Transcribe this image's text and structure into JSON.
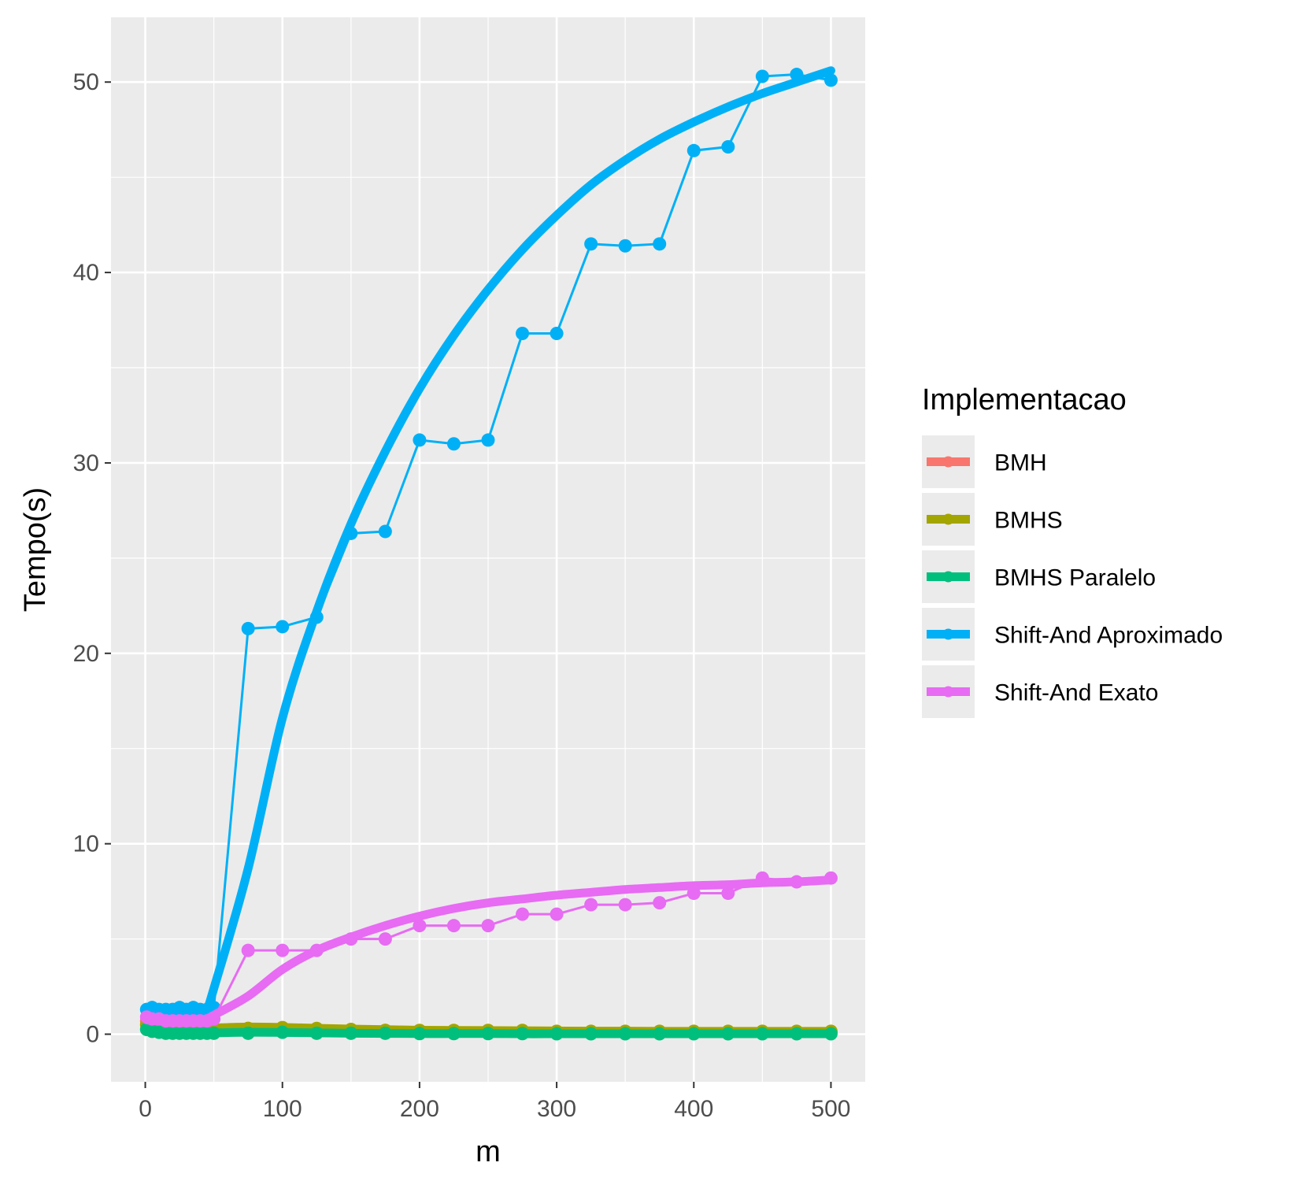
{
  "chart_data": {
    "type": "line",
    "title": "",
    "xlabel": "m",
    "ylabel": "Tempo(s)",
    "xlim": [
      -25,
      525
    ],
    "ylim": [
      -2.5,
      53.4
    ],
    "xticks": [
      0,
      100,
      200,
      300,
      400,
      500
    ],
    "yticks": [
      0,
      10,
      20,
      30,
      40,
      50
    ],
    "grid": true,
    "legend": {
      "title": "Implementacao",
      "position": "right"
    },
    "x": [
      1,
      5,
      10,
      15,
      20,
      25,
      30,
      35,
      40,
      45,
      50,
      75,
      100,
      125,
      150,
      175,
      200,
      225,
      250,
      275,
      300,
      325,
      350,
      375,
      400,
      425,
      450,
      475,
      500
    ],
    "series": [
      {
        "name": "BMH",
        "color": "#F8766D",
        "values": [
          0.7,
          0.5,
          0.4,
          0.4,
          0.35,
          0.35,
          0.3,
          0.3,
          0.3,
          0.3,
          0.3,
          0.3,
          0.3,
          0.25,
          0.2,
          0.2,
          0.15,
          0.15,
          0.15,
          0.15,
          0.1,
          0.1,
          0.1,
          0.1,
          0.1,
          0.1,
          0.1,
          0.1,
          0.1
        ],
        "smooth": [
          0.55,
          0.48,
          0.42,
          0.38,
          0.35,
          0.33,
          0.32,
          0.31,
          0.31,
          0.31,
          0.31,
          0.32,
          0.3,
          0.26,
          0.22,
          0.19,
          0.17,
          0.15,
          0.14,
          0.13,
          0.12,
          0.12,
          0.11,
          0.11,
          0.11,
          0.1,
          0.1,
          0.1,
          0.1
        ]
      },
      {
        "name": "BMHS",
        "color": "#A3A500",
        "values": [
          0.5,
          0.4,
          0.35,
          0.3,
          0.3,
          0.3,
          0.3,
          0.3,
          0.3,
          0.3,
          0.3,
          0.3,
          0.35,
          0.3,
          0.25,
          0.2,
          0.2,
          0.2,
          0.2,
          0.2,
          0.15,
          0.15,
          0.15,
          0.15,
          0.15,
          0.15,
          0.15,
          0.15,
          0.15
        ],
        "smooth": [
          0.45,
          0.4,
          0.36,
          0.33,
          0.31,
          0.3,
          0.3,
          0.3,
          0.31,
          0.32,
          0.33,
          0.38,
          0.36,
          0.31,
          0.27,
          0.24,
          0.21,
          0.2,
          0.19,
          0.18,
          0.17,
          0.16,
          0.16,
          0.15,
          0.15,
          0.15,
          0.15,
          0.15,
          0.15
        ]
      },
      {
        "name": "BMHS Paralelo",
        "color": "#00BF7D",
        "values": [
          0.25,
          0.15,
          0.1,
          0.05,
          0.05,
          0.05,
          0.05,
          0.05,
          0.05,
          0.05,
          0.05,
          0.05,
          0.1,
          0.05,
          0.05,
          0.05,
          0.03,
          0.03,
          0.03,
          0.03,
          0.02,
          0.02,
          0.02,
          0.02,
          0.02,
          0.02,
          0.02,
          0.02,
          0.02
        ],
        "smooth": [
          0.2,
          0.15,
          0.1,
          0.08,
          0.06,
          0.05,
          0.05,
          0.05,
          0.05,
          0.06,
          0.07,
          0.1,
          0.09,
          0.07,
          0.05,
          0.04,
          0.03,
          0.03,
          0.03,
          0.02,
          0.02,
          0.02,
          0.02,
          0.02,
          0.02,
          0.02,
          0.02,
          0.02,
          0.02
        ]
      },
      {
        "name": "Shift-And Aproximado",
        "color": "#00B0F6",
        "values": [
          1.3,
          1.4,
          1.3,
          1.3,
          1.3,
          1.4,
          1.3,
          1.4,
          1.3,
          1.3,
          1.4,
          21.3,
          21.4,
          21.9,
          26.3,
          26.4,
          31.2,
          31.0,
          31.2,
          36.8,
          36.8,
          41.5,
          41.4,
          41.5,
          46.4,
          46.6,
          50.3,
          50.4,
          50.1
        ],
        "smooth": [
          1.25,
          1.22,
          1.2,
          1.18,
          1.17,
          1.17,
          1.18,
          1.2,
          1.25,
          1.4,
          2.4,
          8.7,
          16.6,
          22.2,
          26.8,
          30.6,
          33.9,
          36.7,
          39.1,
          41.2,
          43.0,
          44.6,
          45.9,
          47.0,
          47.9,
          48.7,
          49.4,
          50.0,
          50.6
        ]
      },
      {
        "name": "Shift-And Exato",
        "color": "#E76BF3",
        "values": [
          0.9,
          0.8,
          0.8,
          0.7,
          0.7,
          0.7,
          0.7,
          0.7,
          0.7,
          0.7,
          0.8,
          4.4,
          4.4,
          4.4,
          5.0,
          5.0,
          5.7,
          5.7,
          5.7,
          6.3,
          6.3,
          6.8,
          6.8,
          6.9,
          7.4,
          7.4,
          8.2,
          8.0,
          8.2
        ],
        "smooth": [
          0.75,
          0.72,
          0.7,
          0.69,
          0.68,
          0.68,
          0.68,
          0.69,
          0.72,
          0.8,
          1.0,
          2.0,
          3.4,
          4.4,
          5.1,
          5.7,
          6.2,
          6.6,
          6.9,
          7.1,
          7.3,
          7.45,
          7.6,
          7.7,
          7.8,
          7.85,
          7.95,
          8.0,
          8.1
        ]
      }
    ]
  }
}
